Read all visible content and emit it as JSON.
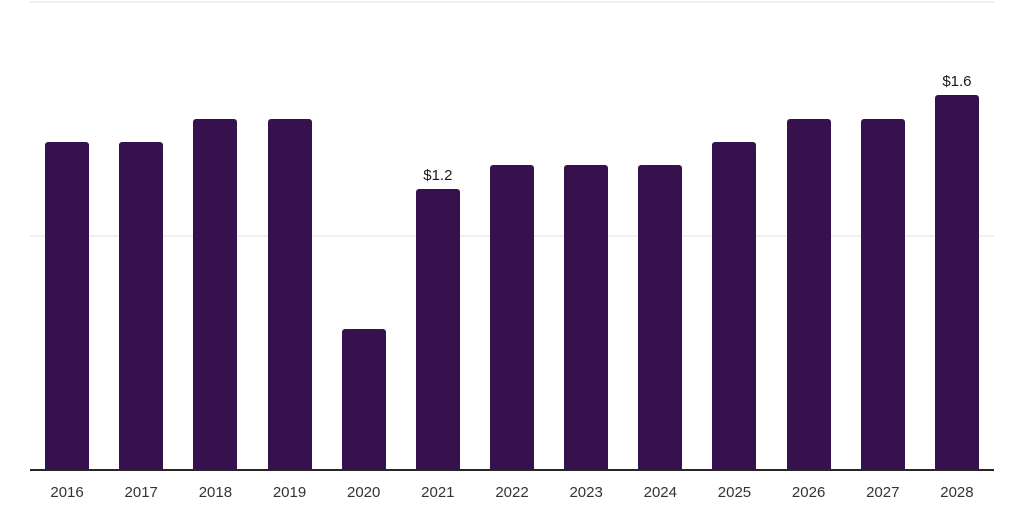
{
  "chart_data": {
    "type": "bar",
    "title": "",
    "xlabel": "",
    "ylabel": "",
    "categories": [
      "2016",
      "2017",
      "2018",
      "2019",
      "2020",
      "2021",
      "2022",
      "2023",
      "2024",
      "2025",
      "2026",
      "2027",
      "2028"
    ],
    "values": [
      1.4,
      1.4,
      1.5,
      1.5,
      0.6,
      1.2,
      1.3,
      1.3,
      1.3,
      1.4,
      1.5,
      1.5,
      1.6
    ],
    "bar_labels": [
      "",
      "",
      "",
      "",
      "",
      "$1.2",
      "",
      "",
      "",
      "",
      "",
      "",
      "$1.6"
    ],
    "ylim": [
      0,
      2.0
    ],
    "gridlines_y": [
      1.0,
      2.0
    ],
    "y_axis_tick_labels": "none",
    "legend": "none",
    "grid": "horizontal light gridlines, unlabeled",
    "colors": {
      "bar": "#36114e",
      "axis_line": "#262626",
      "gridline": "#f0f0f0",
      "year_label": "#333333",
      "value_label": "#1a1a1a",
      "background": "#ffffff"
    }
  }
}
